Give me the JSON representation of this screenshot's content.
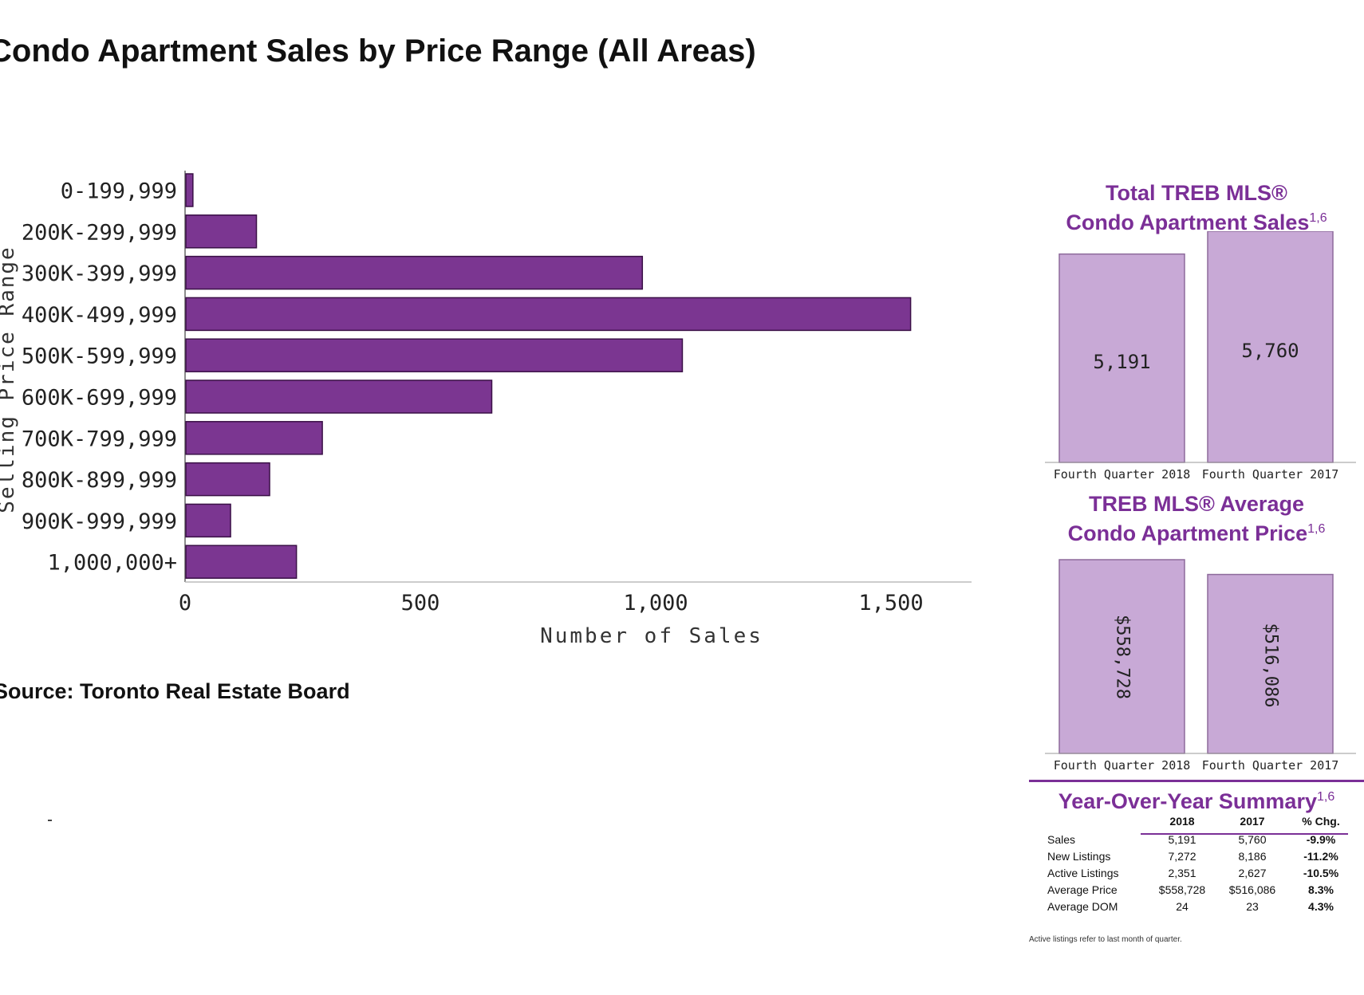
{
  "title": "Condo Apartment Sales by Price Range (All Areas)",
  "source": "Source: Toronto Real Estate Board",
  "chart_data": [
    {
      "type": "bar",
      "orientation": "horizontal",
      "title": "Condo Apartment Sales by Price Range (All Areas)",
      "xlabel": "Number of Sales",
      "ylabel": "Selling Price Range",
      "categories": [
        "0-199,999",
        "200K-299,999",
        "300K-399,999",
        "400K-499,999",
        "500K-599,999",
        "600K-699,999",
        "700K-799,999",
        "800K-899,999",
        "900K-999,999",
        "1,000,000+"
      ],
      "values": [
        15,
        150,
        970,
        1540,
        1055,
        650,
        290,
        178,
        95,
        235
      ],
      "xlim": [
        0,
        1650
      ],
      "xticks": [
        0,
        500,
        1000,
        1500
      ],
      "xtick_labels": [
        "0",
        "500",
        "1,000",
        "1,500"
      ],
      "bar_color": "#7b3691",
      "grid": false
    },
    {
      "type": "bar",
      "title": "Total TREB MLS® Condo Apartment Sales",
      "title_line1": "Total TREB MLS®",
      "title_line2": "Condo Apartment Sales",
      "superscript": "1,6",
      "categories": [
        "Fourth Quarter 2018",
        "Fourth Quarter 2017"
      ],
      "values": [
        5191,
        5760
      ],
      "value_labels": [
        "5,191",
        "5,760"
      ],
      "ylim": [
        0,
        5760
      ],
      "bar_color": "#c8a9d6"
    },
    {
      "type": "bar",
      "title": "TREB MLS® Average Condo Apartment Price",
      "title_line1": "TREB MLS® Average",
      "title_line2": "Condo Apartment Price",
      "superscript": "1,6",
      "categories": [
        "Fourth Quarter 2018",
        "Fourth Quarter 2017"
      ],
      "values": [
        558728,
        516086
      ],
      "value_labels": [
        "$558,728",
        "$516,086"
      ],
      "ylim": [
        0,
        558728
      ],
      "bar_color": "#c8a9d6"
    },
    {
      "type": "table",
      "title": "Year-Over-Year Summary",
      "superscript": "1,6",
      "columns": [
        "",
        "2018",
        "2017",
        "% Chg."
      ],
      "rows": [
        [
          "Sales",
          "5,191",
          "5,760",
          "-9.9%"
        ],
        [
          "New Listings",
          "7,272",
          "8,186",
          "-11.2%"
        ],
        [
          "Active Listings",
          "2,351",
          "2,627",
          "-10.5%"
        ],
        [
          "Average Price",
          "$558,728",
          "$516,086",
          "8.3%"
        ],
        [
          "Average DOM",
          "24",
          "23",
          "4.3%"
        ]
      ],
      "footnote": "Active listings refer to last month of quarter."
    }
  ]
}
